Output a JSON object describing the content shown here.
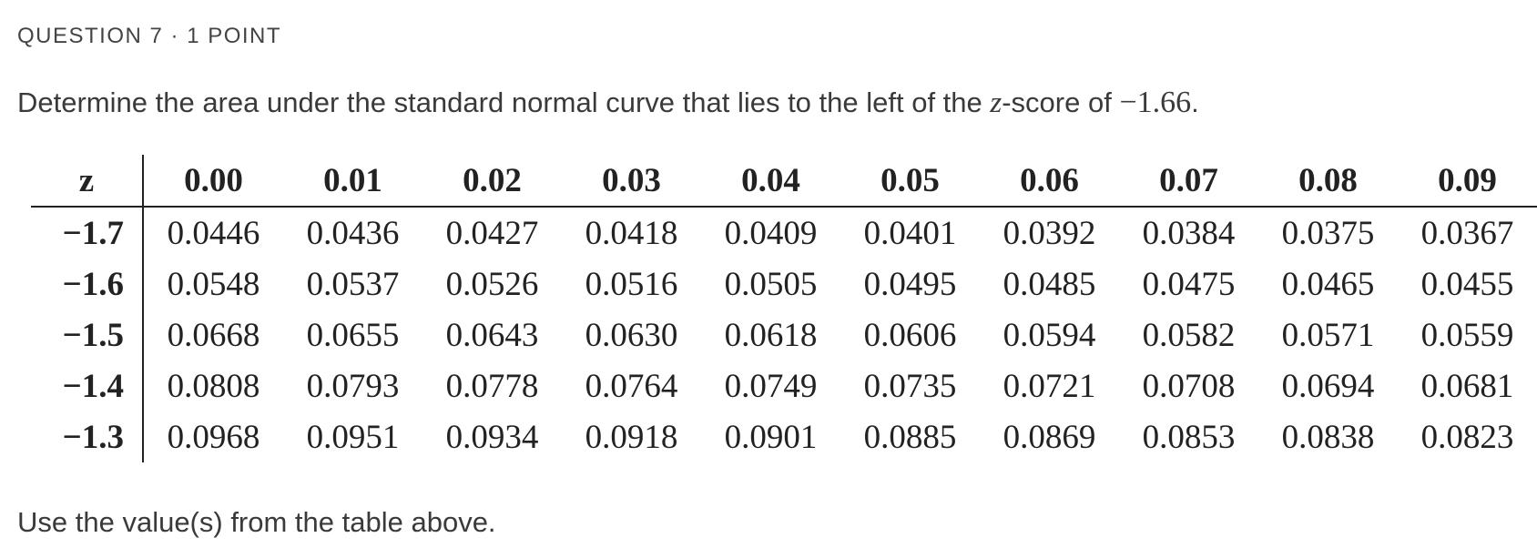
{
  "header": {
    "label": "QUESTION 7 · 1 POINT"
  },
  "question": {
    "prefix": "Determine the area under the standard normal curve that lies to the left of the ",
    "variable": "z",
    "middle": "-score of ",
    "value": "−1.66",
    "suffix": "."
  },
  "table": {
    "header": [
      "z",
      "0.00",
      "0.01",
      "0.02",
      "0.03",
      "0.04",
      "0.05",
      "0.06",
      "0.07",
      "0.08",
      "0.09"
    ],
    "rows": [
      [
        "−1.7",
        "0.0446",
        "0.0436",
        "0.0427",
        "0.0418",
        "0.0409",
        "0.0401",
        "0.0392",
        "0.0384",
        "0.0375",
        "0.0367"
      ],
      [
        "−1.6",
        "0.0548",
        "0.0537",
        "0.0526",
        "0.0516",
        "0.0505",
        "0.0495",
        "0.0485",
        "0.0475",
        "0.0465",
        "0.0455"
      ],
      [
        "−1.5",
        "0.0668",
        "0.0655",
        "0.0643",
        "0.0630",
        "0.0618",
        "0.0606",
        "0.0594",
        "0.0582",
        "0.0571",
        "0.0559"
      ],
      [
        "−1.4",
        "0.0808",
        "0.0793",
        "0.0778",
        "0.0764",
        "0.0749",
        "0.0735",
        "0.0721",
        "0.0708",
        "0.0694",
        "0.0681"
      ],
      [
        "−1.3",
        "0.0968",
        "0.0951",
        "0.0934",
        "0.0918",
        "0.0901",
        "0.0885",
        "0.0869",
        "0.0853",
        "0.0838",
        "0.0823"
      ]
    ]
  },
  "footer": {
    "text": "Use the value(s) from the table above."
  }
}
